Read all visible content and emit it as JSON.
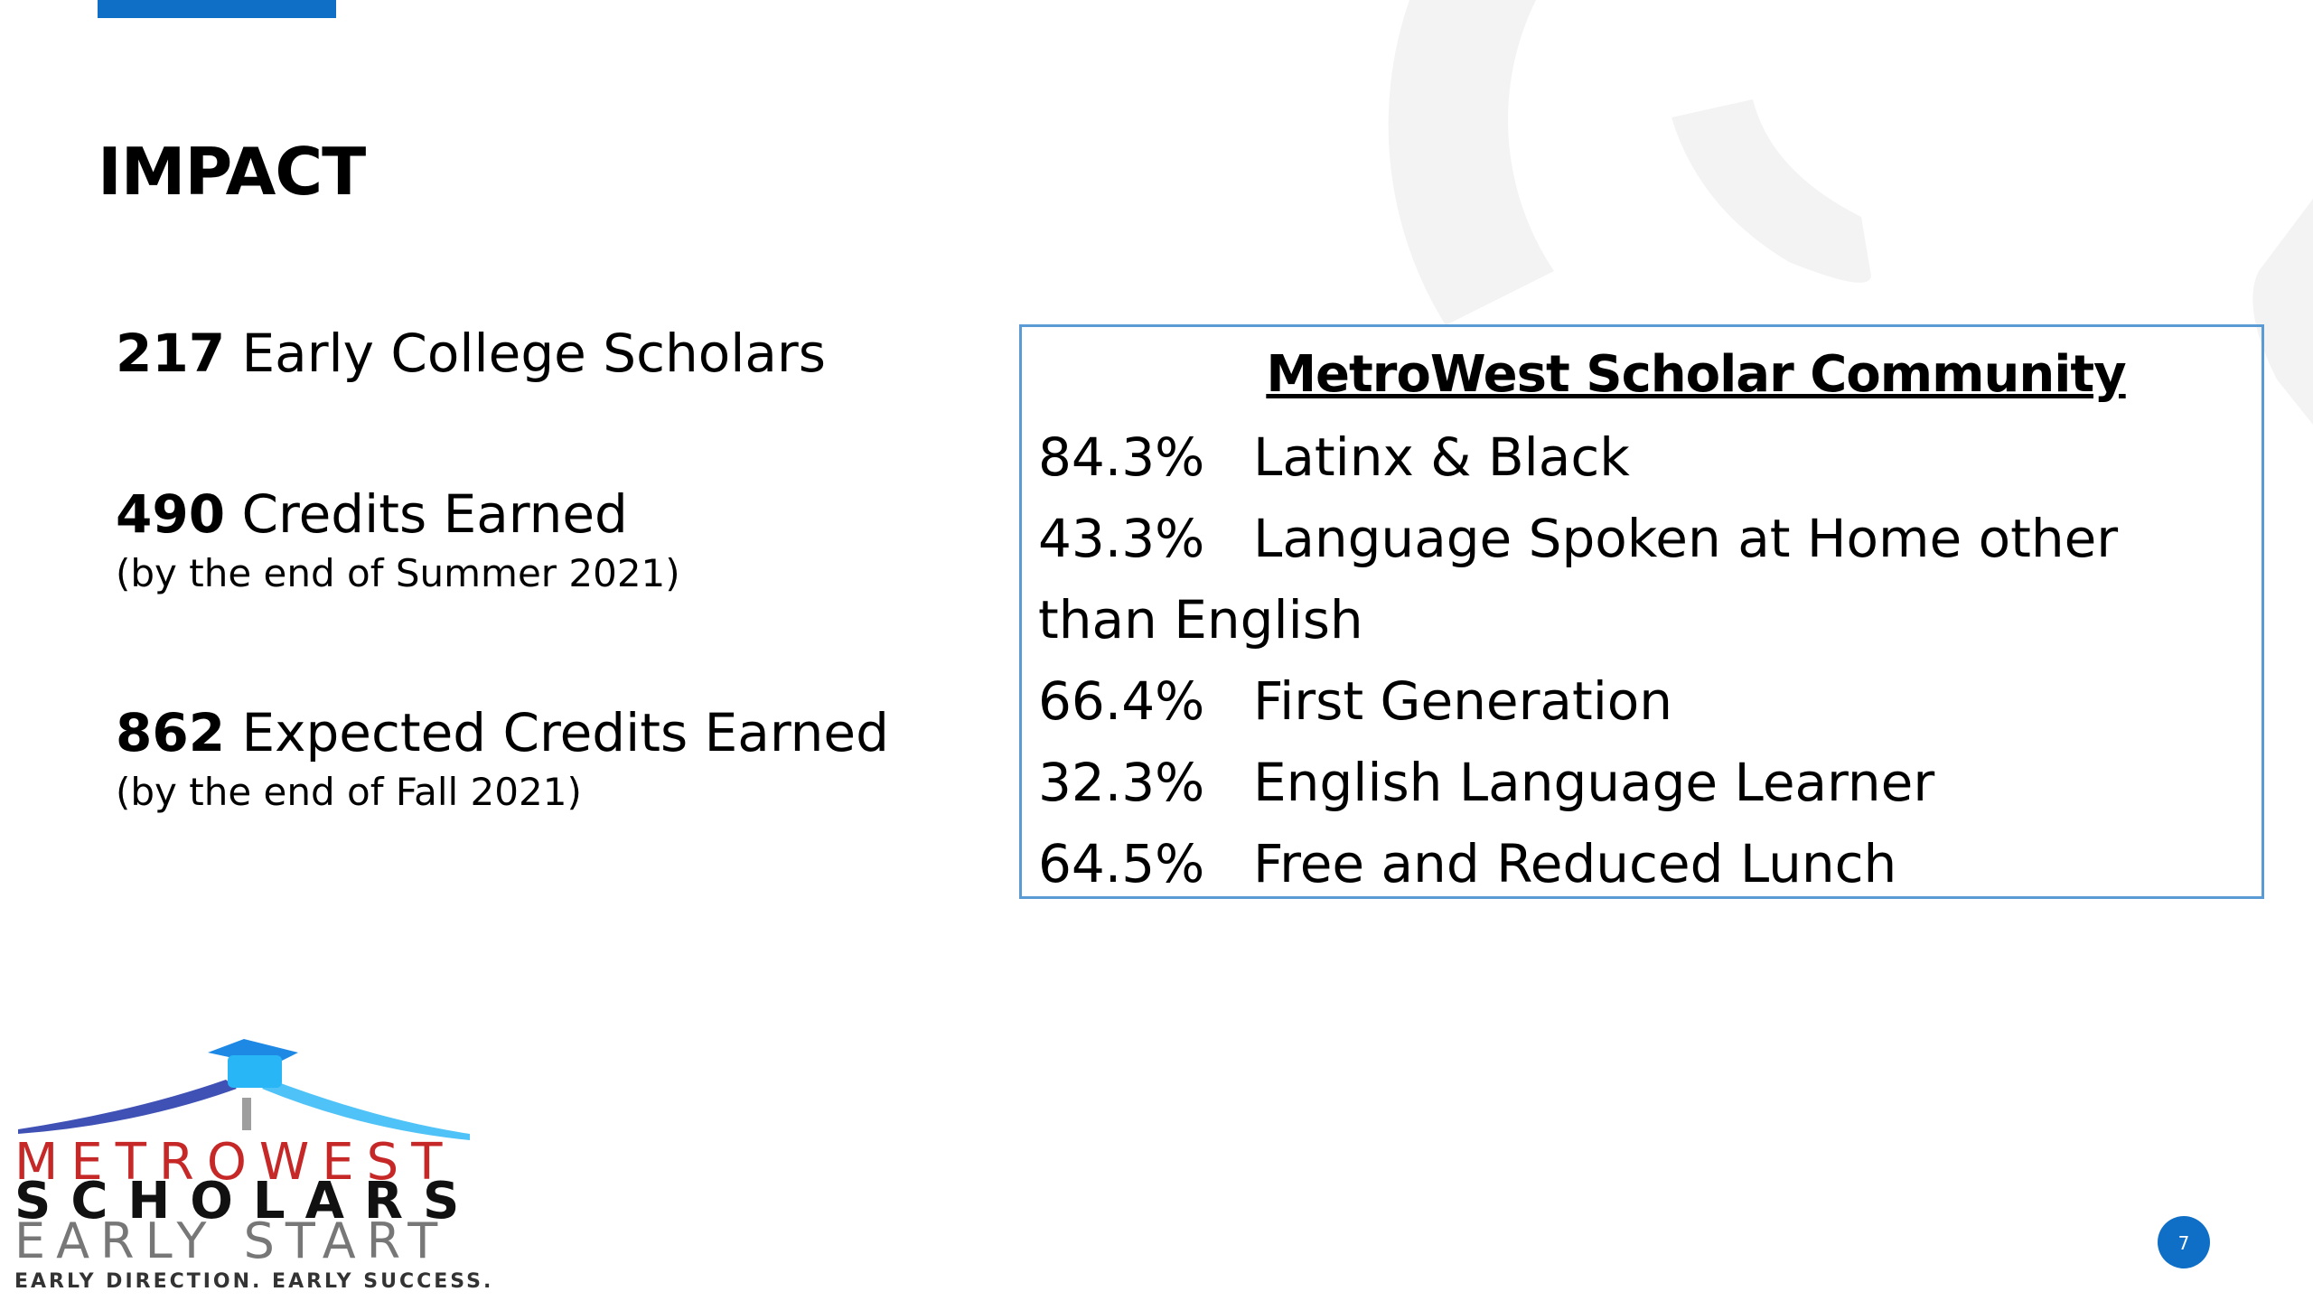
{
  "header": {
    "title": "IMPACT"
  },
  "stats": [
    {
      "number": 217,
      "label": "Early College Scholars"
    },
    {
      "number": 490,
      "label": "Credits Earned",
      "note": "(by the end of Summer 2021)"
    },
    {
      "number": 862,
      "label": "Expected Credits Earned",
      "note": "(by the end of Fall 2021)"
    }
  ],
  "community": {
    "title": "MetroWest Scholar Community",
    "rows": [
      {
        "percent": "84.3%",
        "label": "Latinx & Black"
      },
      {
        "percent": "43.3%",
        "label": "Language Spoken at Home other than English"
      },
      {
        "percent": "66.4%",
        "label": "First Generation"
      },
      {
        "percent": "32.3%",
        "label": "English Language Learner"
      },
      {
        "percent": "64.5%",
        "label": "Free and Reduced Lunch"
      }
    ]
  },
  "logo": {
    "line1": "METROWEST",
    "line2": "SCHOLARS",
    "line3": "EARLY START",
    "tagline": "EARLY DIRECTION. EARLY SUCCESS."
  },
  "page_number": 7
}
